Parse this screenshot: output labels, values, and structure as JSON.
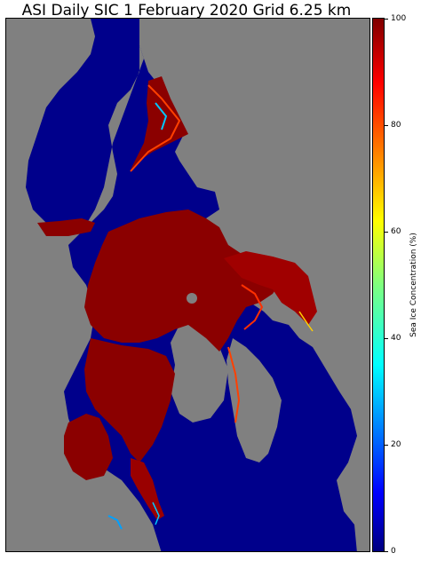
{
  "title": "ASI Daily SIC 1 February 2020 Grid 6.25 km",
  "colorbar": {
    "label": "Sea Ice Concentration (%)",
    "ticks": [
      "0",
      "20",
      "40",
      "60",
      "80",
      "100"
    ],
    "min": 0,
    "max": 100,
    "colormap": "jet"
  },
  "colors": {
    "ocean": "#00008b",
    "land": "#808080",
    "ice_high": "#8b0000",
    "ice_mid": "#ff2000",
    "ice_low": "#00aaff"
  }
}
